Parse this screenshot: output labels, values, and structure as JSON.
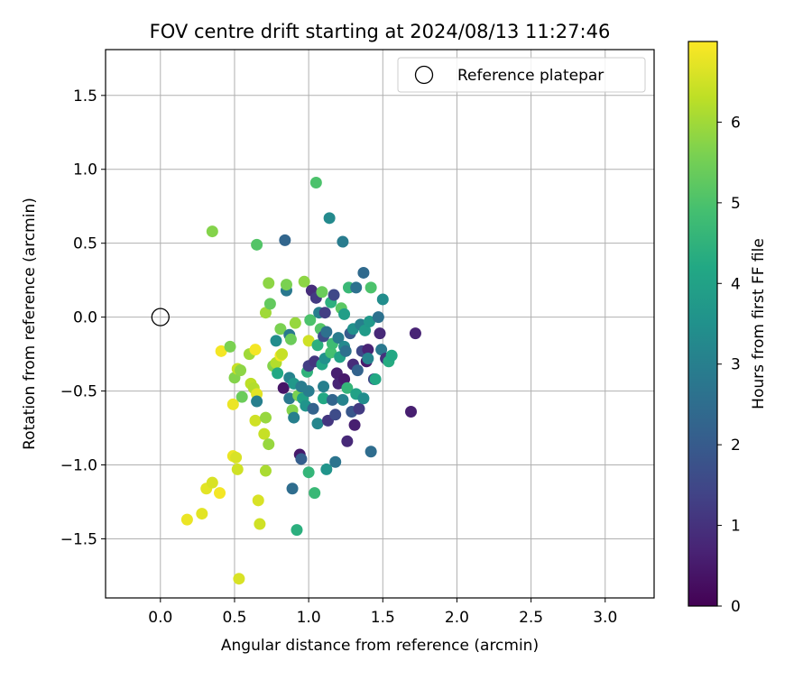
{
  "chart_data": {
    "type": "scatter",
    "title": "FOV centre drift starting at 2024/08/13 11:27:46",
    "xlabel": "Angular distance from reference (arcmin)",
    "ylabel": "Rotation from reference (arcmin)",
    "xlim": [
      -0.37,
      3.33
    ],
    "ylim": [
      -1.9,
      1.81
    ],
    "x_ticks": [
      "0.0",
      "0.5",
      "1.0",
      "1.5",
      "2.0",
      "2.5",
      "3.0"
    ],
    "y_ticks": [
      "−1.5",
      "−1.0",
      "−0.5",
      "0.0",
      "0.5",
      "1.0",
      "1.5"
    ],
    "grid": true,
    "legend": {
      "position": "top-right",
      "entries": [
        "Reference platepar"
      ]
    },
    "reference_point": {
      "x": 0.0,
      "y": 0.0,
      "marker": "open-circle"
    },
    "colorbar": {
      "label": "Hours from first FF file",
      "range": [
        0,
        7
      ],
      "ticks": [
        "0",
        "1",
        "2",
        "3",
        "4",
        "5",
        "6"
      ],
      "colormap": "viridis"
    },
    "points": [
      {
        "x": 0.18,
        "y": -1.37,
        "h": 6.8
      },
      {
        "x": 0.28,
        "y": -1.33,
        "h": 6.7
      },
      {
        "x": 0.31,
        "y": -1.16,
        "h": 6.7
      },
      {
        "x": 0.35,
        "y": -1.12,
        "h": 6.6
      },
      {
        "x": 0.4,
        "y": -1.19,
        "h": 6.9
      },
      {
        "x": 0.41,
        "y": -0.23,
        "h": 6.9
      },
      {
        "x": 0.47,
        "y": -0.2,
        "h": 5.6
      },
      {
        "x": 0.49,
        "y": -0.59,
        "h": 6.8
      },
      {
        "x": 0.49,
        "y": -0.94,
        "h": 6.8
      },
      {
        "x": 0.5,
        "y": -0.41,
        "h": 5.7
      },
      {
        "x": 0.51,
        "y": -0.95,
        "h": 6.6
      },
      {
        "x": 0.52,
        "y": -1.03,
        "h": 6.5
      },
      {
        "x": 0.52,
        "y": -0.35,
        "h": 6.4
      },
      {
        "x": 0.53,
        "y": -1.77,
        "h": 6.6
      },
      {
        "x": 0.54,
        "y": -0.36,
        "h": 5.8
      },
      {
        "x": 0.55,
        "y": -0.54,
        "h": 5.4
      },
      {
        "x": 0.35,
        "y": 0.58,
        "h": 5.7
      },
      {
        "x": 0.6,
        "y": -0.25,
        "h": 6.0
      },
      {
        "x": 0.61,
        "y": -0.45,
        "h": 6.3
      },
      {
        "x": 0.63,
        "y": -0.48,
        "h": 6.2
      },
      {
        "x": 0.64,
        "y": -0.7,
        "h": 6.5
      },
      {
        "x": 0.64,
        "y": -0.22,
        "h": 6.9
      },
      {
        "x": 0.65,
        "y": -0.52,
        "h": 6.7
      },
      {
        "x": 0.65,
        "y": -0.57,
        "h": 3.0
      },
      {
        "x": 0.65,
        "y": 0.49,
        "h": 5.1
      },
      {
        "x": 0.66,
        "y": -1.24,
        "h": 6.6
      },
      {
        "x": 0.67,
        "y": -1.4,
        "h": 6.5
      },
      {
        "x": 0.7,
        "y": -0.79,
        "h": 6.4
      },
      {
        "x": 0.71,
        "y": -0.68,
        "h": 5.9
      },
      {
        "x": 0.71,
        "y": -1.04,
        "h": 6.1
      },
      {
        "x": 0.71,
        "y": 0.03,
        "h": 6.0
      },
      {
        "x": 0.73,
        "y": -0.86,
        "h": 5.9
      },
      {
        "x": 0.73,
        "y": 0.23,
        "h": 5.8
      },
      {
        "x": 0.74,
        "y": 0.09,
        "h": 5.3
      },
      {
        "x": 0.76,
        "y": -0.33,
        "h": 5.7
      },
      {
        "x": 0.78,
        "y": -0.31,
        "h": 6.2
      },
      {
        "x": 0.78,
        "y": -0.16,
        "h": 3.4
      },
      {
        "x": 0.79,
        "y": -0.38,
        "h": 4.2
      },
      {
        "x": 0.81,
        "y": -0.26,
        "h": 6.9
      },
      {
        "x": 0.81,
        "y": -0.08,
        "h": 5.6
      },
      {
        "x": 0.82,
        "y": -0.25,
        "h": 6.4
      },
      {
        "x": 0.83,
        "y": -0.48,
        "h": 0.4
      },
      {
        "x": 0.84,
        "y": 0.52,
        "h": 2.3
      },
      {
        "x": 0.85,
        "y": 0.18,
        "h": 2.8
      },
      {
        "x": 0.85,
        "y": 0.22,
        "h": 5.6
      },
      {
        "x": 0.87,
        "y": -0.55,
        "h": 2.8
      },
      {
        "x": 0.87,
        "y": -0.41,
        "h": 3.1
      },
      {
        "x": 0.87,
        "y": -0.12,
        "h": 2.8
      },
      {
        "x": 0.88,
        "y": -0.15,
        "h": 5.4
      },
      {
        "x": 0.89,
        "y": -1.16,
        "h": 2.5
      },
      {
        "x": 0.89,
        "y": -0.63,
        "h": 5.7
      },
      {
        "x": 0.9,
        "y": -0.68,
        "h": 3.0
      },
      {
        "x": 0.9,
        "y": -0.45,
        "h": 3.7
      },
      {
        "x": 0.91,
        "y": -0.04,
        "h": 5.9
      },
      {
        "x": 0.92,
        "y": -1.44,
        "h": 4.4
      },
      {
        "x": 0.93,
        "y": -0.53,
        "h": 5.6
      },
      {
        "x": 0.94,
        "y": -0.93,
        "h": 0.5
      },
      {
        "x": 0.95,
        "y": -0.96,
        "h": 2.1
      },
      {
        "x": 0.95,
        "y": -0.47,
        "h": 2.9
      },
      {
        "x": 0.96,
        "y": -0.55,
        "h": 4.0
      },
      {
        "x": 0.97,
        "y": 0.24,
        "h": 5.8
      },
      {
        "x": 0.98,
        "y": -0.6,
        "h": 3.6
      },
      {
        "x": 0.99,
        "y": -0.37,
        "h": 4.5
      },
      {
        "x": 1.0,
        "y": -0.5,
        "h": 2.9
      },
      {
        "x": 1.0,
        "y": -0.33,
        "h": 1.3
      },
      {
        "x": 1.0,
        "y": -1.05,
        "h": 4.6
      },
      {
        "x": 1.0,
        "y": -0.16,
        "h": 6.5
      },
      {
        "x": 1.01,
        "y": -0.02,
        "h": 5.0
      },
      {
        "x": 1.02,
        "y": 0.18,
        "h": 0.9
      },
      {
        "x": 1.03,
        "y": -0.62,
        "h": 2.2
      },
      {
        "x": 1.04,
        "y": -1.19,
        "h": 4.7
      },
      {
        "x": 1.04,
        "y": -0.3,
        "h": 1.1
      },
      {
        "x": 1.05,
        "y": 0.13,
        "h": 1.2
      },
      {
        "x": 1.05,
        "y": 0.91,
        "h": 5.0
      },
      {
        "x": 1.06,
        "y": -0.72,
        "h": 3.2
      },
      {
        "x": 1.06,
        "y": -0.19,
        "h": 4.4
      },
      {
        "x": 1.07,
        "y": 0.03,
        "h": 3.0
      },
      {
        "x": 1.08,
        "y": -0.08,
        "h": 5.1
      },
      {
        "x": 1.09,
        "y": -0.32,
        "h": 4.1
      },
      {
        "x": 1.09,
        "y": 0.17,
        "h": 5.4
      },
      {
        "x": 1.1,
        "y": -0.13,
        "h": 1.6
      },
      {
        "x": 1.1,
        "y": -0.55,
        "h": 4.2
      },
      {
        "x": 1.1,
        "y": -0.47,
        "h": 3.0
      },
      {
        "x": 1.11,
        "y": -0.28,
        "h": 3.5
      },
      {
        "x": 1.11,
        "y": 0.03,
        "h": 1.3
      },
      {
        "x": 1.12,
        "y": -1.03,
        "h": 3.6
      },
      {
        "x": 1.12,
        "y": -0.1,
        "h": 2.6
      },
      {
        "x": 1.13,
        "y": -0.7,
        "h": 1.1
      },
      {
        "x": 1.14,
        "y": 0.67,
        "h": 3.3
      },
      {
        "x": 1.15,
        "y": -0.24,
        "h": 4.9
      },
      {
        "x": 1.15,
        "y": 0.1,
        "h": 4.4
      },
      {
        "x": 1.16,
        "y": -0.56,
        "h": 2.3
      },
      {
        "x": 1.16,
        "y": -0.18,
        "h": 4.8
      },
      {
        "x": 1.17,
        "y": 0.15,
        "h": 1.5
      },
      {
        "x": 1.18,
        "y": -0.66,
        "h": 1.6
      },
      {
        "x": 1.18,
        "y": -0.98,
        "h": 2.7
      },
      {
        "x": 1.19,
        "y": -0.38,
        "h": 0.6
      },
      {
        "x": 1.2,
        "y": -0.45,
        "h": 0.7
      },
      {
        "x": 1.2,
        "y": -0.14,
        "h": 2.9
      },
      {
        "x": 1.21,
        "y": -0.27,
        "h": 4.0
      },
      {
        "x": 1.22,
        "y": 0.06,
        "h": 5.2
      },
      {
        "x": 1.23,
        "y": 0.51,
        "h": 2.9
      },
      {
        "x": 1.23,
        "y": -0.56,
        "h": 3.1
      },
      {
        "x": 1.24,
        "y": -0.2,
        "h": 3.3
      },
      {
        "x": 1.24,
        "y": 0.02,
        "h": 3.9
      },
      {
        "x": 1.24,
        "y": -0.42,
        "h": 0.5
      },
      {
        "x": 1.25,
        "y": -0.23,
        "h": 2.6
      },
      {
        "x": 1.26,
        "y": -0.84,
        "h": 0.8
      },
      {
        "x": 1.26,
        "y": -0.48,
        "h": 4.6
      },
      {
        "x": 1.27,
        "y": 0.2,
        "h": 4.7
      },
      {
        "x": 1.28,
        "y": -0.11,
        "h": 2.0
      },
      {
        "x": 1.29,
        "y": -0.64,
        "h": 1.9
      },
      {
        "x": 1.3,
        "y": -0.32,
        "h": 0.9
      },
      {
        "x": 1.3,
        "y": -0.08,
        "h": 3.5
      },
      {
        "x": 1.31,
        "y": -0.73,
        "h": 0.6
      },
      {
        "x": 1.32,
        "y": 0.2,
        "h": 2.6
      },
      {
        "x": 1.32,
        "y": -0.52,
        "h": 4.0
      },
      {
        "x": 1.33,
        "y": -0.36,
        "h": 2.2
      },
      {
        "x": 1.34,
        "y": -0.62,
        "h": 1.2
      },
      {
        "x": 1.35,
        "y": -0.05,
        "h": 3.0
      },
      {
        "x": 1.36,
        "y": -0.23,
        "h": 1.5
      },
      {
        "x": 1.37,
        "y": -0.55,
        "h": 3.4
      },
      {
        "x": 1.37,
        "y": 0.3,
        "h": 2.4
      },
      {
        "x": 1.38,
        "y": -0.09,
        "h": 3.8
      },
      {
        "x": 1.39,
        "y": -0.3,
        "h": 0.5
      },
      {
        "x": 1.4,
        "y": -0.22,
        "h": 0.7
      },
      {
        "x": 1.4,
        "y": -0.28,
        "h": 3.1
      },
      {
        "x": 1.41,
        "y": -0.03,
        "h": 3.7
      },
      {
        "x": 1.42,
        "y": -0.91,
        "h": 2.5
      },
      {
        "x": 1.42,
        "y": 0.2,
        "h": 5.0
      },
      {
        "x": 1.44,
        "y": -0.42,
        "h": 1.4
      },
      {
        "x": 1.45,
        "y": -0.42,
        "h": 4.2
      },
      {
        "x": 1.47,
        "y": 0.0,
        "h": 2.6
      },
      {
        "x": 1.48,
        "y": -0.11,
        "h": 0.8
      },
      {
        "x": 1.49,
        "y": -0.22,
        "h": 2.8
      },
      {
        "x": 1.5,
        "y": 0.12,
        "h": 3.4
      },
      {
        "x": 1.52,
        "y": -0.28,
        "h": 1.0
      },
      {
        "x": 1.54,
        "y": -0.3,
        "h": 4.3
      },
      {
        "x": 1.56,
        "y": -0.26,
        "h": 4.2
      },
      {
        "x": 1.69,
        "y": -0.64,
        "h": 0.6
      },
      {
        "x": 1.72,
        "y": -0.11,
        "h": 0.7
      }
    ]
  }
}
